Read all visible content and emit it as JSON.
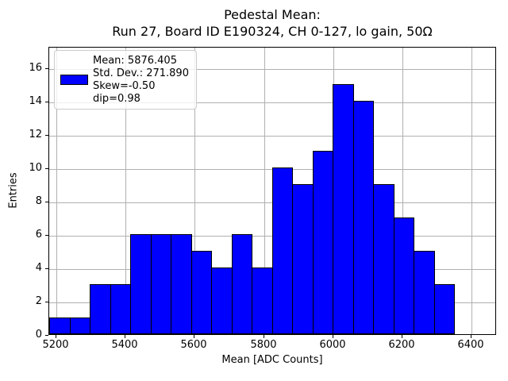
{
  "figure": {
    "title_line1": "Pedestal Mean:",
    "title_line2": "Run 27, Board ID E190324, CH 0-127, lo gain, 50Ω",
    "xlabel": "Mean [ADC Counts]",
    "ylabel": "Entries"
  },
  "legend": {
    "lines": [
      "Mean: 5876.405",
      "Std. Dev.: 271.890",
      "Skew=-0.50",
      "dip=0.98"
    ],
    "swatch_color": "#0000ff"
  },
  "stats": {
    "mean": 5876.405,
    "std_dev": 271.89,
    "skew": -0.5,
    "dip": 0.98
  },
  "chart_data": {
    "type": "bar",
    "subtype": "histogram",
    "title": "Pedestal Mean:\nRun 27, Board ID E190324, CH 0-127, lo gain, 50Ω",
    "xlabel": "Mean [ADC Counts]",
    "ylabel": "Entries",
    "counts": [
      1,
      1,
      3,
      3,
      6,
      6,
      6,
      5,
      4,
      6,
      4,
      10,
      9,
      11,
      15,
      14,
      9,
      7,
      5,
      3
    ],
    "bin_start": 5180,
    "bin_width": 58.5,
    "n_bins": 20,
    "bin_edges": [
      5180,
      5238.5,
      5297,
      5355.5,
      5414,
      5472.5,
      5531,
      5589.5,
      5648,
      5706.5,
      5765,
      5823.5,
      5882,
      5940.5,
      5999,
      6057.5,
      6116,
      6174.5,
      6233,
      6291.5,
      6350
    ],
    "total_entries": 128,
    "x_ticks": [
      5200,
      5400,
      5600,
      5800,
      6000,
      6200,
      6400
    ],
    "y_ticks": [
      0,
      2,
      4,
      6,
      8,
      10,
      12,
      14,
      16
    ],
    "xlim": [
      5179,
      6473
    ],
    "ylim": [
      0,
      17.3
    ],
    "grid": true,
    "legend_position": "upper left",
    "bar_color": "#0000ff",
    "bar_edge_color": "#000000",
    "grid_color": "#b0b0b0"
  }
}
